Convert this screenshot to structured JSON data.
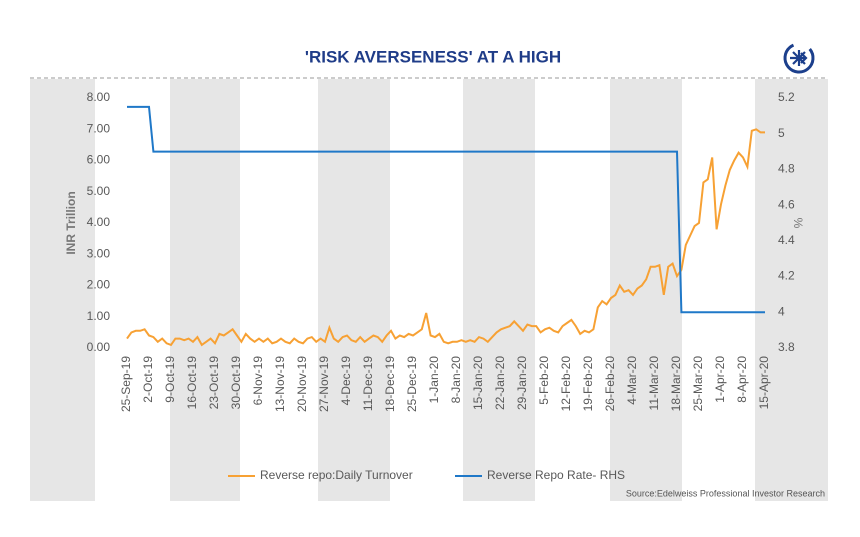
{
  "chart_data": {
    "type": "line",
    "title": "'RISK AVERSENESS' AT A HIGH",
    "ylabel": "INR Trillion",
    "y2label": "%",
    "source": "Source:Edelweiss Professional Investor Research",
    "categories": [
      "25-Sep-19",
      null,
      null,
      null,
      null,
      "2-Oct-19",
      null,
      null,
      null,
      null,
      "9-Oct-19",
      null,
      null,
      null,
      null,
      "16-Oct-19",
      null,
      null,
      null,
      null,
      "23-Oct-19",
      null,
      null,
      null,
      null,
      "30-Oct-19",
      null,
      null,
      null,
      null,
      "6-Nov-19",
      null,
      null,
      null,
      null,
      "13-Nov-19",
      null,
      null,
      null,
      null,
      "20-Nov-19",
      null,
      null,
      null,
      null,
      "27-Nov-19",
      null,
      null,
      null,
      null,
      "4-Dec-19",
      null,
      null,
      null,
      null,
      "11-Dec-19",
      null,
      null,
      null,
      null,
      "18-Dec-19",
      null,
      null,
      null,
      null,
      "25-Dec-19",
      null,
      null,
      null,
      null,
      "1-Jan-20",
      null,
      null,
      null,
      null,
      "8-Jan-20",
      null,
      null,
      null,
      null,
      "15-Jan-20",
      null,
      null,
      null,
      null,
      "22-Jan-20",
      null,
      null,
      null,
      null,
      "29-Jan-20",
      null,
      null,
      null,
      null,
      "5-Feb-20",
      null,
      null,
      null,
      null,
      "12-Feb-20",
      null,
      null,
      null,
      null,
      "19-Feb-20",
      null,
      null,
      null,
      null,
      "26-Feb-20",
      null,
      null,
      null,
      null,
      "4-Mar-20",
      null,
      null,
      null,
      null,
      "11-Mar-20",
      null,
      null,
      null,
      null,
      "18-Mar-20",
      null,
      null,
      null,
      null,
      "25-Mar-20",
      null,
      null,
      null,
      null,
      "1-Apr-20",
      null,
      null,
      null,
      null,
      "8-Apr-20",
      null,
      null,
      null,
      null,
      "15-Apr-20"
    ],
    "series": [
      {
        "name": "Reverse repo:Daily Turnover",
        "color": "#f7a134",
        "values": [
          0.3,
          0.5,
          0.55,
          0.55,
          0.6,
          0.4,
          0.35,
          0.2,
          0.3,
          0.15,
          0.1,
          0.3,
          0.3,
          0.25,
          0.3,
          0.2,
          0.35,
          0.1,
          0.2,
          0.3,
          0.15,
          0.45,
          0.4,
          0.5,
          0.6,
          0.4,
          0.2,
          0.45,
          0.3,
          0.2,
          0.3,
          0.2,
          0.3,
          0.15,
          0.2,
          0.3,
          0.2,
          0.15,
          0.3,
          0.2,
          0.15,
          0.3,
          0.35,
          0.2,
          0.3,
          0.2,
          0.65,
          0.3,
          0.2,
          0.35,
          0.4,
          0.25,
          0.2,
          0.35,
          0.2,
          0.3,
          0.4,
          0.35,
          0.2,
          0.4,
          0.55,
          0.3,
          0.4,
          0.35,
          0.45,
          0.4,
          0.5,
          0.6,
          1.12,
          0.4,
          0.35,
          0.45,
          0.2,
          0.15,
          0.2,
          0.2,
          0.25,
          0.2,
          0.25,
          0.2,
          0.35,
          0.3,
          0.2,
          0.35,
          0.5,
          0.6,
          0.65,
          0.7,
          0.85,
          0.7,
          0.55,
          0.75,
          0.7,
          0.7,
          0.5,
          0.6,
          0.65,
          0.55,
          0.5,
          0.7,
          0.8,
          0.9,
          0.7,
          0.45,
          0.55,
          0.5,
          0.6,
          1.3,
          1.5,
          1.4,
          1.6,
          1.7,
          2.0,
          1.8,
          1.85,
          1.7,
          1.9,
          2.0,
          2.2,
          2.6,
          2.6,
          2.65,
          1.7,
          2.6,
          2.7,
          2.3,
          2.5,
          3.3,
          3.6,
          3.9,
          4.0,
          5.3,
          5.4,
          6.1,
          3.8,
          4.6,
          5.2,
          5.7,
          6.0,
          6.25,
          6.1,
          5.8,
          6.95,
          7.0,
          6.9,
          6.9
        ]
      },
      {
        "name": "Reverse Repo Rate- RHS",
        "color": "#1f78c8",
        "axis": "y2",
        "values": [
          5.15,
          5.15,
          5.15,
          5.15,
          5.15,
          5.15,
          4.9,
          4.9,
          4.9,
          4.9,
          4.9,
          4.9,
          4.9,
          4.9,
          4.9,
          4.9,
          4.9,
          4.9,
          4.9,
          4.9,
          4.9,
          4.9,
          4.9,
          4.9,
          4.9,
          4.9,
          4.9,
          4.9,
          4.9,
          4.9,
          4.9,
          4.9,
          4.9,
          4.9,
          4.9,
          4.9,
          4.9,
          4.9,
          4.9,
          4.9,
          4.9,
          4.9,
          4.9,
          4.9,
          4.9,
          4.9,
          4.9,
          4.9,
          4.9,
          4.9,
          4.9,
          4.9,
          4.9,
          4.9,
          4.9,
          4.9,
          4.9,
          4.9,
          4.9,
          4.9,
          4.9,
          4.9,
          4.9,
          4.9,
          4.9,
          4.9,
          4.9,
          4.9,
          4.9,
          4.9,
          4.9,
          4.9,
          4.9,
          4.9,
          4.9,
          4.9,
          4.9,
          4.9,
          4.9,
          4.9,
          4.9,
          4.9,
          4.9,
          4.9,
          4.9,
          4.9,
          4.9,
          4.9,
          4.9,
          4.9,
          4.9,
          4.9,
          4.9,
          4.9,
          4.9,
          4.9,
          4.9,
          4.9,
          4.9,
          4.9,
          4.9,
          4.9,
          4.9,
          4.9,
          4.9,
          4.9,
          4.9,
          4.9,
          4.9,
          4.9,
          4.9,
          4.9,
          4.9,
          4.9,
          4.9,
          4.9,
          4.9,
          4.9,
          4.9,
          4.9,
          4.9,
          4.9,
          4.9,
          4.9,
          4.9,
          4.9,
          4,
          4,
          4,
          4,
          4,
          4,
          4,
          4,
          4,
          4,
          4,
          4,
          4,
          4,
          4,
          4,
          4,
          4,
          4,
          4
        ]
      }
    ],
    "ylim": [
      0,
      8
    ],
    "yticks": [
      {
        "value": 0,
        "label": "0.00"
      },
      {
        "value": 1,
        "label": "1.00"
      },
      {
        "value": 2,
        "label": "2.00"
      },
      {
        "value": 3,
        "label": "3.00"
      },
      {
        "value": 4,
        "label": "4.00"
      },
      {
        "value": 5,
        "label": "5.00"
      },
      {
        "value": 6,
        "label": "6.00"
      },
      {
        "value": 7,
        "label": "7.00"
      },
      {
        "value": 8,
        "label": "8.00"
      }
    ],
    "y2lim": [
      3.8,
      5.2
    ],
    "y2ticks": [
      3.8,
      4,
      4.2,
      4.4,
      4.6,
      4.8,
      5,
      5.2
    ],
    "legend": "bottom"
  }
}
